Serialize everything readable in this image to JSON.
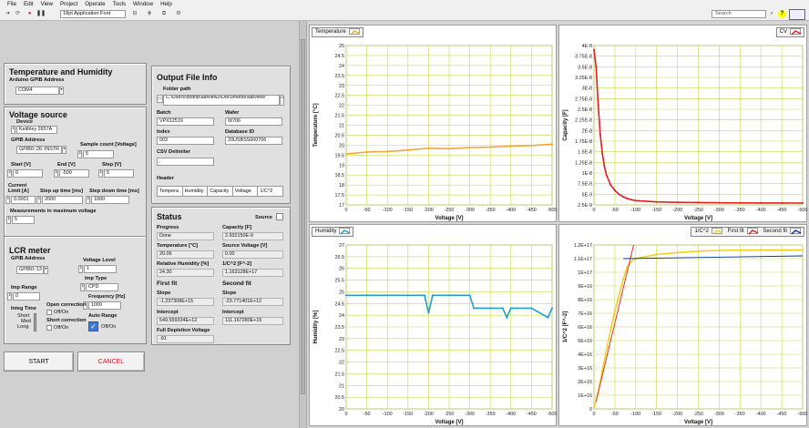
{
  "menu": [
    "File",
    "Edit",
    "View",
    "Project",
    "Operate",
    "Tools",
    "Window",
    "Help"
  ],
  "toolbar": {
    "font": "18pt Application Font",
    "search_placeholder": "Search"
  },
  "temp_hum": {
    "title": "Temperature and Humidity",
    "arduino_label": "Arduino GPIB Address",
    "arduino_value": "COM4"
  },
  "voltage_source": {
    "title": "Voltage source",
    "device_label": "Device",
    "device_value": "Keithley 2657A",
    "gpib_label": "GPIB Address",
    "gpib_value": "GPIB0::26::INSTR",
    "sample_label": "Sample count [Voltage]",
    "sample_value": "5",
    "start_label": "Start [V]",
    "start_value": "0",
    "end_label": "End [V]",
    "end_value": "-500",
    "step_label": "Step [V]",
    "step_value": "5",
    "current_label1": "Current",
    "current_label2": "Limit [A]",
    "current_value": "0.0001",
    "stepup_label": "Step up time [ms]",
    "stepup_value": "2000",
    "stepdown_label": "Step down time [ms]",
    "stepdown_value": "1000",
    "meas_label": "Measurements in maximum voltage",
    "meas_value": "5"
  },
  "lcr": {
    "title": "LCR meter",
    "gpib_label": "GPIB Address",
    "gpib_value": "GPIB0::13",
    "voltage_label": "Voltage Level",
    "voltage_value": "1",
    "imp_range_label": "Imp Range",
    "imp_range_value": "0",
    "imp_type_label": "Imp Type",
    "imp_type_value": "CPD",
    "freq_label": "Frequency [Hz]",
    "freq_value": "1000",
    "integ_label": "Integ Time",
    "integ_short": "Short",
    "integ_med": "Med",
    "integ_long": "Long",
    "open_label": "Open correction",
    "open_value": "Off/On",
    "short_label": "Short correction",
    "short_value": "Off/On",
    "auto_label": "Auto Range",
    "auto_value": "Off/On"
  },
  "buttons": {
    "start": "START",
    "cancel": "CANCEL"
  },
  "output": {
    "title": "Output File Info",
    "folder_label": "Folder path",
    "folder_value": "C:\\Users\\dtstrip\\labview3\\Documents\\labview\\",
    "batch_label": "Batch",
    "batch_value": "VPX12519",
    "wafer_label": "Wafer",
    "wafer_value": "W706",
    "index_label": "Index",
    "index_value": "003",
    "db_label": "Database ID",
    "db_value": "20USBSS000706",
    "csv_label": "CSV Delimiter",
    "csv_value": ",",
    "header_label": "Header",
    "headers": [
      "Tempera",
      "Humidity",
      "Capacity",
      "Voltage",
      "1/C^2"
    ]
  },
  "status": {
    "title": "Status",
    "source_label": "Source",
    "progress_label": "Progress",
    "progress_value": "Done",
    "capacity_label": "Capacity [F]",
    "capacity_value": "2.932150E-9",
    "temp_label": "Temperature [°C]",
    "temp_value": "20.06",
    "srcv_label": "Source Voltage [V]",
    "srcv_value": "0.00",
    "rh_label": "Relative Humidity [%]",
    "rh_value": "24.30",
    "invc_label": "1/C^2 [F^-2]",
    "invc_value": "1.163128E+17",
    "first_label": "First fit",
    "second_label": "Second fit",
    "slope_label": "Slope",
    "slope1_value": "-1.237308E+15",
    "slope2_value": "-23.771401E+12",
    "intercept_label": "Intercept",
    "int1_value": "549.559334E+12",
    "int2_value": "111.167280E+15",
    "fdv_label": "Full Depletion Voltage",
    "fdv_value": "-91"
  },
  "charts": {
    "temperature": {
      "legend": "Temperature",
      "ylabel": "Temperature [°C]",
      "xlabel": "Voltage [V]"
    },
    "cv": {
      "legend": "CV",
      "ylabel": "Capacity [F]",
      "xlabel": "Voltage [V]"
    },
    "humidity": {
      "legend": "Humidity",
      "ylabel": "Humidity [%]",
      "xlabel": "Voltage [V]"
    },
    "invc2": {
      "legend1": "1/C^2",
      "legend2": "First fit",
      "legend3": "Second fit",
      "ylabel": "1/C^2 [F^-2]",
      "xlabel": "Voltage [V]"
    }
  },
  "chart_data": [
    {
      "type": "line",
      "id": "temperature",
      "color": "#f0a830",
      "xticks": [
        0,
        -50,
        -100,
        -150,
        -200,
        -250,
        -300,
        -350,
        -400,
        -450,
        -500
      ],
      "ylim": [
        17,
        25
      ],
      "yticks": [
        "25",
        "24.5",
        "24",
        "23.5",
        "23",
        "22.5",
        "22",
        "21.5",
        "21",
        "20.5",
        "20",
        "19.5",
        "19",
        "18.5",
        "18",
        "17.5",
        "17"
      ],
      "x": [
        0,
        -50,
        -100,
        -150,
        -200,
        -250,
        -300,
        -350,
        -400,
        -450,
        -500
      ],
      "y": [
        19.55,
        19.65,
        19.68,
        19.75,
        19.85,
        19.82,
        19.88,
        19.9,
        19.95,
        19.98,
        20.05
      ]
    },
    {
      "type": "line",
      "id": "cv",
      "color": "#e02020",
      "xticks": [
        0,
        -50,
        -100,
        -150,
        -200,
        -250,
        -300,
        -350,
        -400,
        -450,
        -500
      ],
      "ylim": [
        2.5e-09,
        4e-08
      ],
      "yticks": [
        "4E-8",
        "3.75E-8",
        "3.5E-8",
        "3.25E-8",
        "3E-8",
        "2.75E-8",
        "2.5E-8",
        "2.25E-8",
        "2E-8",
        "1.75E-8",
        "1.5E-8",
        "1.25E-8",
        "1E-8",
        "7.5E-9",
        "5E-9",
        "2.5E-9"
      ],
      "x": [
        0,
        -5,
        -10,
        -15,
        -20,
        -25,
        -30,
        -40,
        -50,
        -60,
        -70,
        -80,
        -90,
        -100,
        -150,
        -200,
        -250,
        -300,
        -350,
        -400,
        -450,
        -500
      ],
      "y": [
        3.9e-08,
        3.5e-08,
        2.6e-08,
        1.9e-08,
        1.45e-08,
        1.15e-08,
        9.5e-09,
        7.2e-09,
        5.9e-09,
        5e-09,
        4.4e-09,
        4e-09,
        3.7e-09,
        3.5e-09,
        3.2e-09,
        3.1e-09,
        3.05e-09,
        3e-09,
        2.98e-09,
        2.96e-09,
        2.95e-09,
        2.93e-09
      ]
    },
    {
      "type": "line",
      "id": "humidity",
      "color": "#20a0d0",
      "xticks": [
        0,
        -50,
        -100,
        -150,
        -200,
        -250,
        -300,
        -350,
        -400,
        -450,
        -500
      ],
      "ylim": [
        20,
        27
      ],
      "yticks": [
        "27",
        "26.5",
        "26",
        "25.5",
        "25",
        "24.5",
        "24",
        "23.5",
        "23",
        "22.5",
        "22",
        "21.5",
        "21",
        "20.5",
        "20"
      ],
      "x": [
        0,
        -50,
        -100,
        -150,
        -190,
        -200,
        -210,
        -250,
        -300,
        -310,
        -320,
        -350,
        -380,
        -390,
        -400,
        -450,
        -490,
        -500
      ],
      "y": [
        24.85,
        24.85,
        24.85,
        24.85,
        24.85,
        24.1,
        24.85,
        24.85,
        24.85,
        24.3,
        24.3,
        24.3,
        24.3,
        23.9,
        24.3,
        24.3,
        23.9,
        24.3
      ]
    },
    {
      "type": "line",
      "id": "invc2",
      "xticks": [
        0,
        -50,
        -100,
        -150,
        -200,
        -250,
        -300,
        -350,
        -400,
        -450,
        -500
      ],
      "ylim": [
        0,
        1.2e+17
      ],
      "yticks": [
        "1.2E+17",
        "1.1E+17",
        "1E+17",
        "9E+16",
        "8E+16",
        "7E+16",
        "6E+16",
        "5E+16",
        "4E+16",
        "3E+16",
        "2E+16",
        "1E+16",
        "0"
      ],
      "series": [
        {
          "name": "1/C^2",
          "color": "#f0d020",
          "x": [
            0,
            -10,
            -20,
            -30,
            -40,
            -50,
            -60,
            -70,
            -80,
            -90,
            -100,
            -150,
            -200,
            -250,
            -300,
            -350,
            -400,
            -450,
            -500
          ],
          "y": [
            1000000000000000.0,
            1.2e+16,
            2.8e+16,
            4.3e+16,
            5.8e+16,
            7.2e+16,
            8.3e+16,
            9.5e+16,
            1.04e+17,
            1.08e+17,
            1.1e+17,
            1.13e+17,
            1.145e+17,
            1.155e+17,
            1.16e+17,
            1.162e+17,
            1.163e+17,
            1.163e+17,
            1.163e+17
          ]
        },
        {
          "name": "First fit",
          "color": "#e02020",
          "x": [
            -5,
            -95
          ],
          "y": [
            5500000000000000.0,
            1.2e+17
          ]
        },
        {
          "name": "Second fit",
          "color": "#1030a0",
          "x": [
            -70,
            -500
          ],
          "y": [
            1.1e+17,
            1.12e+17
          ]
        }
      ]
    }
  ]
}
